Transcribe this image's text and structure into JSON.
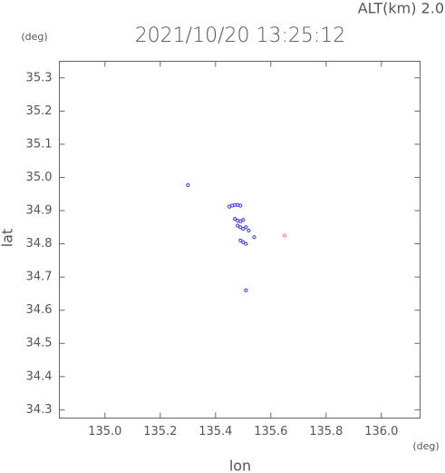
{
  "chart_data": {
    "type": "scatter",
    "title": "2021/10/20 13:25:12",
    "annotation": "ALT(km) 2.0",
    "y_unit": "(deg)",
    "x_unit": "(deg)",
    "xlabel": "lon",
    "ylabel": "lat",
    "xlim": [
      134.835,
      136.14
    ],
    "ylim": [
      34.275,
      35.35
    ],
    "xticks": [
      {
        "value": 135,
        "label": "135.0"
      },
      135.2,
      135.4,
      135.6,
      135.8,
      {
        "value": 136,
        "label": "136.0"
      }
    ],
    "yticks": [
      34.3,
      34.4,
      34.5,
      34.6,
      34.7,
      34.8,
      34.9,
      {
        "value": 35,
        "label": "35.0"
      },
      35.1,
      35.2,
      35.3
    ],
    "series": [
      {
        "color": "#3a3adf",
        "x": [
          135.3,
          135.45,
          135.46,
          135.47,
          135.48,
          135.49,
          135.47,
          135.48,
          135.49,
          135.5,
          135.48,
          135.49,
          135.5,
          135.51,
          135.52,
          135.49,
          135.5,
          135.51,
          135.54,
          135.51
        ],
        "y": [
          34.977,
          34.912,
          34.915,
          34.917,
          34.917,
          34.915,
          34.875,
          34.87,
          34.868,
          34.872,
          34.855,
          34.85,
          34.845,
          34.85,
          34.84,
          34.81,
          34.805,
          34.8,
          34.82,
          34.66
        ]
      },
      {
        "color": "#f08080",
        "x": [
          135.65
        ],
        "y": [
          34.825
        ]
      }
    ]
  }
}
